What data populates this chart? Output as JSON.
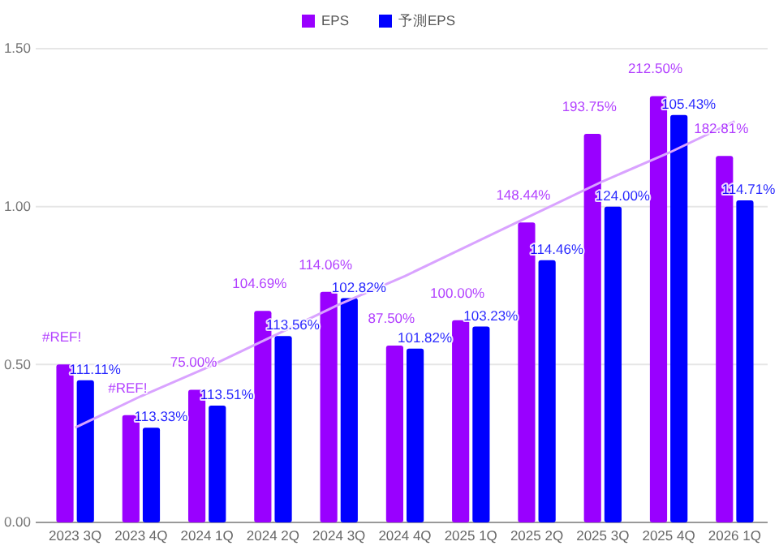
{
  "chart_data": {
    "type": "bar",
    "categories": [
      "2023 3Q",
      "2023 4Q",
      "2024 1Q",
      "2024 2Q",
      "2024 3Q",
      "2024 4Q",
      "2025 1Q",
      "2025 2Q",
      "2025 3Q",
      "2025 4Q",
      "2026 1Q"
    ],
    "series": [
      {
        "name": "EPS",
        "color": "#9900ff",
        "values": [
          0.5,
          0.34,
          0.42,
          0.67,
          0.73,
          0.56,
          0.64,
          0.95,
          1.23,
          1.35,
          1.16
        ]
      },
      {
        "name": "予測EPS",
        "color": "#0000ff",
        "values": [
          0.45,
          0.3,
          0.37,
          0.59,
          0.71,
          0.55,
          0.62,
          0.83,
          1.0,
          1.29,
          1.02
        ]
      },
      {
        "type": "line",
        "color": "#d9a3ff",
        "values": [
          0.3,
          0.4,
          0.49,
          0.59,
          0.69,
          0.78,
          0.88,
          0.98,
          1.08,
          1.17,
          1.27
        ]
      }
    ],
    "annotations": [
      {
        "text": "#REF!",
        "x": "2023 3Q",
        "y": 0.5
      },
      {
        "text": "#REF!",
        "x": "2023 4Q",
        "y": 0.34
      },
      {
        "text": "75.00%",
        "x": "2024 1Q",
        "y": 0.42
      },
      {
        "text": "104.69%",
        "x": "2024 2Q",
        "y": 0.67
      },
      {
        "text": "114.06%",
        "x": "2024 3Q",
        "y": 0.73
      },
      {
        "text": "87.50%",
        "x": "2024 4Q",
        "y": 0.56
      },
      {
        "text": "100.00%",
        "x": "2025 1Q",
        "y": 0.64
      },
      {
        "text": "148.44%",
        "x": "2025 2Q",
        "y": 0.95
      },
      {
        "text": "193.75%",
        "x": "2025 3Q",
        "y": 1.23
      },
      {
        "text": "212.50%",
        "x": "2025 4Q",
        "y": 1.35
      },
      {
        "text": "182.81%",
        "x": "2026 1Q",
        "y": 1.16
      },
      {
        "text": "111.11%",
        "x": "2023 3Q",
        "y": 0.45
      },
      {
        "text": "113.33%",
        "x": "2023 4Q",
        "y": 0.3
      },
      {
        "text": "113.51%",
        "x": "2024 1Q",
        "y": 0.37
      },
      {
        "text": "113.56%",
        "x": "2024 2Q",
        "y": 0.59
      },
      {
        "text": "102.82%",
        "x": "2024 3Q",
        "y": 0.71
      },
      {
        "text": "101.82%",
        "x": "2024 4Q",
        "y": 0.55
      },
      {
        "text": "103.23%",
        "x": "2025 1Q",
        "y": 0.62
      },
      {
        "text": "114.46%",
        "x": "2025 2Q",
        "y": 0.83
      },
      {
        "text": "124.00%",
        "x": "2025 3Q",
        "y": 1.0
      },
      {
        "text": "105.43%",
        "x": "2025 4Q",
        "y": 1.29
      },
      {
        "text": "114.71%",
        "x": "2026 1Q",
        "y": 1.02
      }
    ],
    "ylim": [
      0,
      1.5
    ],
    "yticks": [
      {
        "value": 0,
        "label": "0.00"
      },
      {
        "value": 0.5,
        "label": "0.50"
      },
      {
        "value": 1,
        "label": "1.00"
      },
      {
        "value": 1.5,
        "label": "1.50"
      }
    ],
    "grid": "y",
    "legend": "top"
  }
}
